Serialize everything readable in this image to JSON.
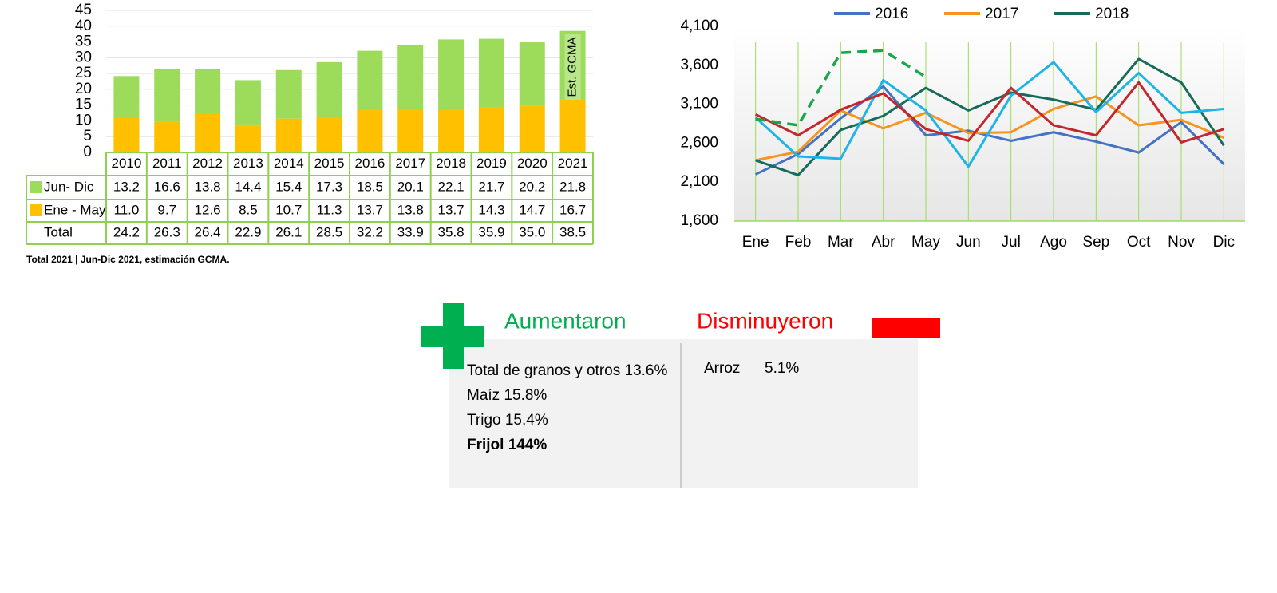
{
  "chart_data": [
    {
      "type": "bar",
      "stacked": true,
      "grid": true,
      "categories": [
        "2010",
        "2011",
        "2012",
        "2013",
        "2014",
        "2015",
        "2016",
        "2017",
        "2018",
        "2019",
        "2020",
        "2021"
      ],
      "series": [
        {
          "name": "Jun- Dic",
          "color": "#9ddb5a",
          "values": [
            13.2,
            16.6,
            13.8,
            14.4,
            15.4,
            17.3,
            18.5,
            20.1,
            22.1,
            21.7,
            20.2,
            21.8
          ],
          "value_labels": [
            "13.2",
            "16.6",
            "13.8",
            "14.4",
            "15.4",
            "17.3",
            "18.5",
            "20.1",
            "22.1",
            "21.7",
            "20.2",
            "21.8"
          ]
        },
        {
          "name": "Ene - May",
          "color": "#ffc000",
          "values": [
            11.0,
            9.7,
            12.6,
            8.5,
            10.7,
            11.3,
            13.7,
            13.8,
            13.7,
            14.3,
            14.7,
            16.7
          ],
          "value_labels": [
            "11.0",
            "9.7",
            "12.6",
            "8.5",
            "10.7",
            "11.3",
            "13.7",
            "13.8",
            "13.7",
            "14.3",
            "14.7",
            "16.7"
          ]
        }
      ],
      "totals": {
        "name": "Total",
        "values": [
          24.2,
          26.3,
          26.4,
          22.9,
          26.1,
          28.5,
          32.2,
          33.9,
          35.8,
          35.9,
          35.0,
          38.5
        ],
        "value_labels": [
          "24.2",
          "26.3",
          "26.4",
          "22.9",
          "26.1",
          "28.5",
          "32.2",
          "33.9",
          "35.8",
          "35.9",
          "35.0",
          "38.5"
        ]
      },
      "ylim": [
        0,
        45
      ],
      "yticks": [
        0,
        5,
        10,
        15,
        20,
        25,
        30,
        35,
        40,
        45
      ],
      "annotation": "Est. GCMA",
      "note": "Total 2021 | Jun-Dic 2021, estimación GCMA."
    },
    {
      "type": "line",
      "grid": true,
      "legend": "top",
      "categories": [
        "Ene",
        "Feb",
        "Mar",
        "Abr",
        "May",
        "Jun",
        "Jul",
        "Ago",
        "Sep",
        "Oct",
        "Nov",
        "Dic"
      ],
      "series": [
        {
          "name": "2016",
          "color": "#4472c4",
          "values": [
            2200,
            2460,
            2920,
            3330,
            2700,
            2760,
            2630,
            2740,
            2620,
            2480,
            2870,
            2330
          ]
        },
        {
          "name": "2017",
          "color": "#f7941d",
          "values": [
            2380,
            2490,
            3020,
            2790,
            2990,
            2730,
            2740,
            3040,
            3200,
            2830,
            2900,
            2670
          ]
        },
        {
          "name": "2018",
          "color": "#176b5b",
          "values": [
            2380,
            2190,
            2770,
            2950,
            3310,
            3020,
            3250,
            3160,
            3030,
            3680,
            3380,
            2570
          ]
        },
        {
          "color": "#1fb4e8",
          "values": [
            2930,
            2430,
            2400,
            3410,
            3020,
            2300,
            3210,
            3640,
            3000,
            3500,
            2990,
            3040
          ]
        },
        {
          "color": "#c1272d",
          "values": [
            2970,
            2700,
            3030,
            3240,
            2780,
            2630,
            3310,
            2830,
            2700,
            3380,
            2610,
            2780
          ]
        },
        {
          "color": "#1aa64a",
          "dash": true,
          "values": [
            2910,
            2830,
            3760,
            3790,
            3450,
            null,
            null,
            null,
            null,
            null,
            null,
            null
          ]
        }
      ],
      "ylim": [
        1600,
        4100
      ],
      "yticks": [
        {
          "value": 1600,
          "label": "1,600"
        },
        {
          "value": 2100,
          "label": "2,100"
        },
        {
          "value": 2600,
          "label": "2,600"
        },
        {
          "value": 3100,
          "label": "3,100"
        },
        {
          "value": 3600,
          "label": "3,600"
        },
        {
          "value": 4100,
          "label": "4,100"
        }
      ]
    }
  ],
  "panel": {
    "increased": {
      "title": "Aumentaron",
      "items": [
        "Total de granos y otros 13.6%",
        "Maíz 15.8%",
        "Trigo 15.4%",
        "Frijol 144%"
      ]
    },
    "decreased": {
      "title": "Disminuyeron",
      "items": [
        {
          "name": "Arroz",
          "value": "5.1%"
        }
      ]
    }
  }
}
